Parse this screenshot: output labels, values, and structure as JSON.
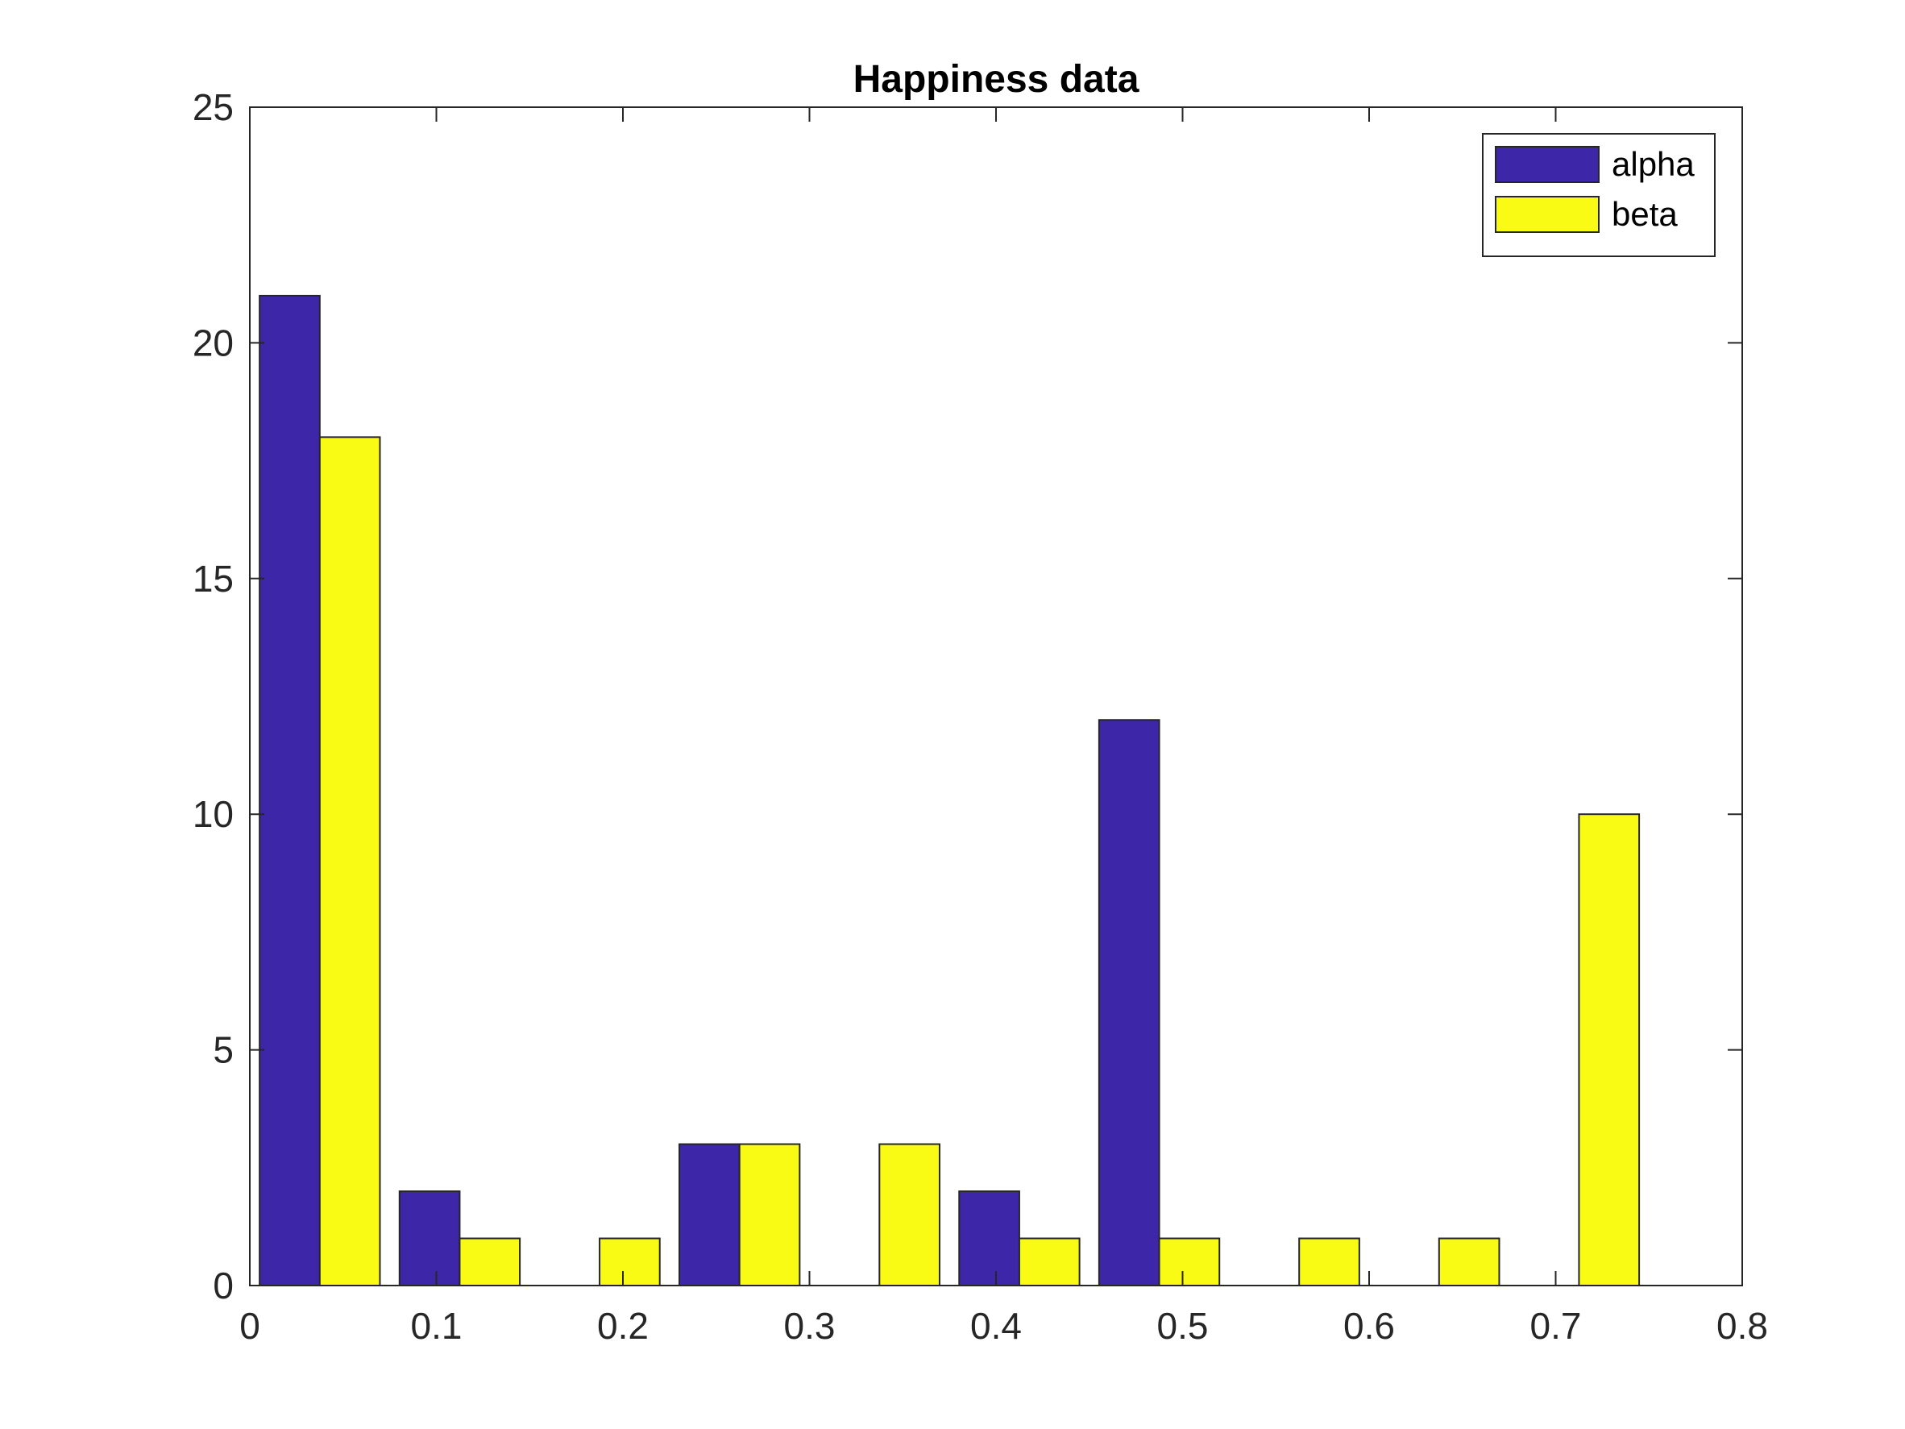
{
  "chart_data": {
    "type": "bar",
    "title": "Happiness data",
    "xlabel": "",
    "ylabel": "",
    "xlim": [
      0,
      0.8
    ],
    "ylim": [
      0,
      25
    ],
    "x_ticks": [
      0,
      0.1,
      0.2,
      0.3,
      0.4,
      0.5,
      0.6,
      0.7,
      0.8
    ],
    "x_tick_labels": [
      "0",
      "0.1",
      "0.2",
      "0.3",
      "0.4",
      "0.5",
      "0.6",
      "0.7",
      "0.8"
    ],
    "y_ticks": [
      0,
      5,
      10,
      15,
      20,
      25
    ],
    "y_tick_labels": [
      "0",
      "5",
      "10",
      "15",
      "20",
      "25"
    ],
    "categories": [
      0.0375,
      0.1125,
      0.1875,
      0.2625,
      0.3375,
      0.4125,
      0.4875,
      0.5625,
      0.6375,
      0.7125
    ],
    "series": [
      {
        "name": "alpha",
        "color": "#3d26a8",
        "values": [
          21,
          2,
          0,
          3,
          0,
          2,
          12,
          0,
          0,
          0
        ]
      },
      {
        "name": "beta",
        "color": "#f9fb15",
        "values": [
          18,
          1,
          1,
          3,
          3,
          1,
          1,
          1,
          1,
          10
        ]
      }
    ],
    "grid": false,
    "legend_position": "top-right"
  }
}
